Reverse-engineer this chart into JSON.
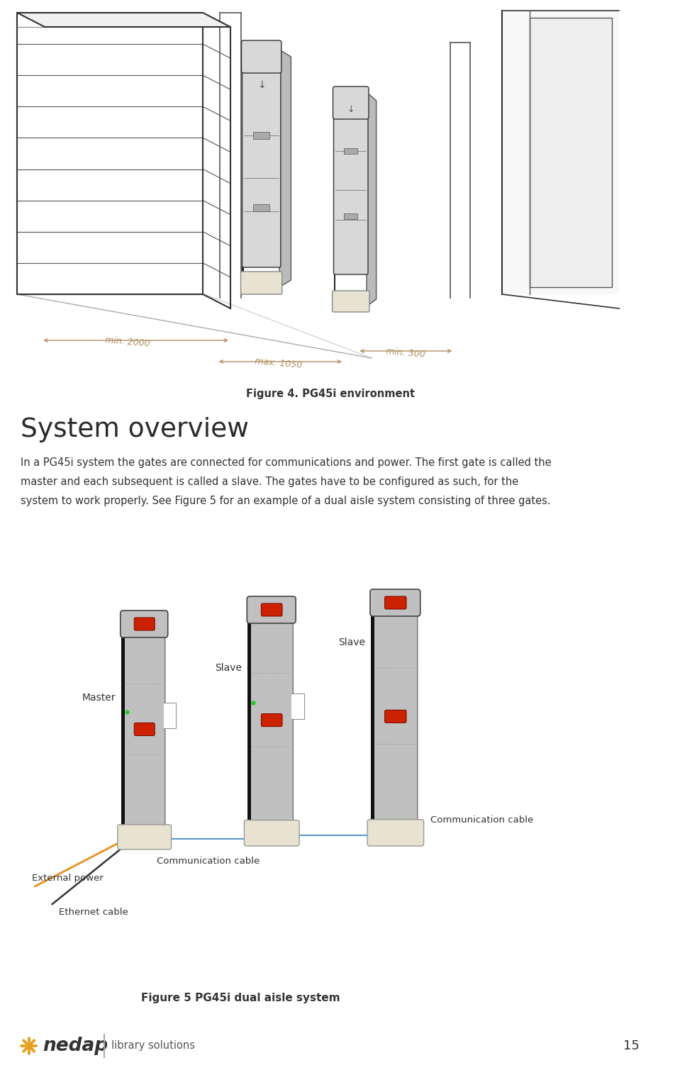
{
  "bg_color": "#ffffff",
  "page_number": "15",
  "figure4_caption": "Figure 4. PG45i environment",
  "section_title": "System overview",
  "body_text_lines": [
    "In a PG45i system the gates are connected for communications and power. The first gate is called the",
    "master and each subsequent is called a slave. The gates have to be configured as such, for the",
    "system to work properly. See Figure 5 for an example of a dual aisle system consisting of three gates."
  ],
  "figure5_caption": "Figure 5 PG45i dual aisle system",
  "label_master": "Master",
  "label_slave1": "Slave",
  "label_slave2": "Slave",
  "label_ext_power": "External power",
  "label_ethernet": "Ethernet cable",
  "label_comm1": "Communication cable",
  "label_comm2": "Communication cable",
  "gate_body_color": "#c0c0c0",
  "gate_dark_edge": "#111111",
  "gate_base_color": "#e8e2d0",
  "gate_red_color": "#cc2200",
  "comm_cable_color": "#5599cc",
  "power_cable_color": "#e89020",
  "ethernet_cable_color": "#333333",
  "dim_color": "#b09060",
  "text_color": "#333333",
  "title_color": "#2a2a2a",
  "footer_star_color": "#e8a020",
  "footer_text_color": "#333333",
  "footer_sub_color": "#555555"
}
